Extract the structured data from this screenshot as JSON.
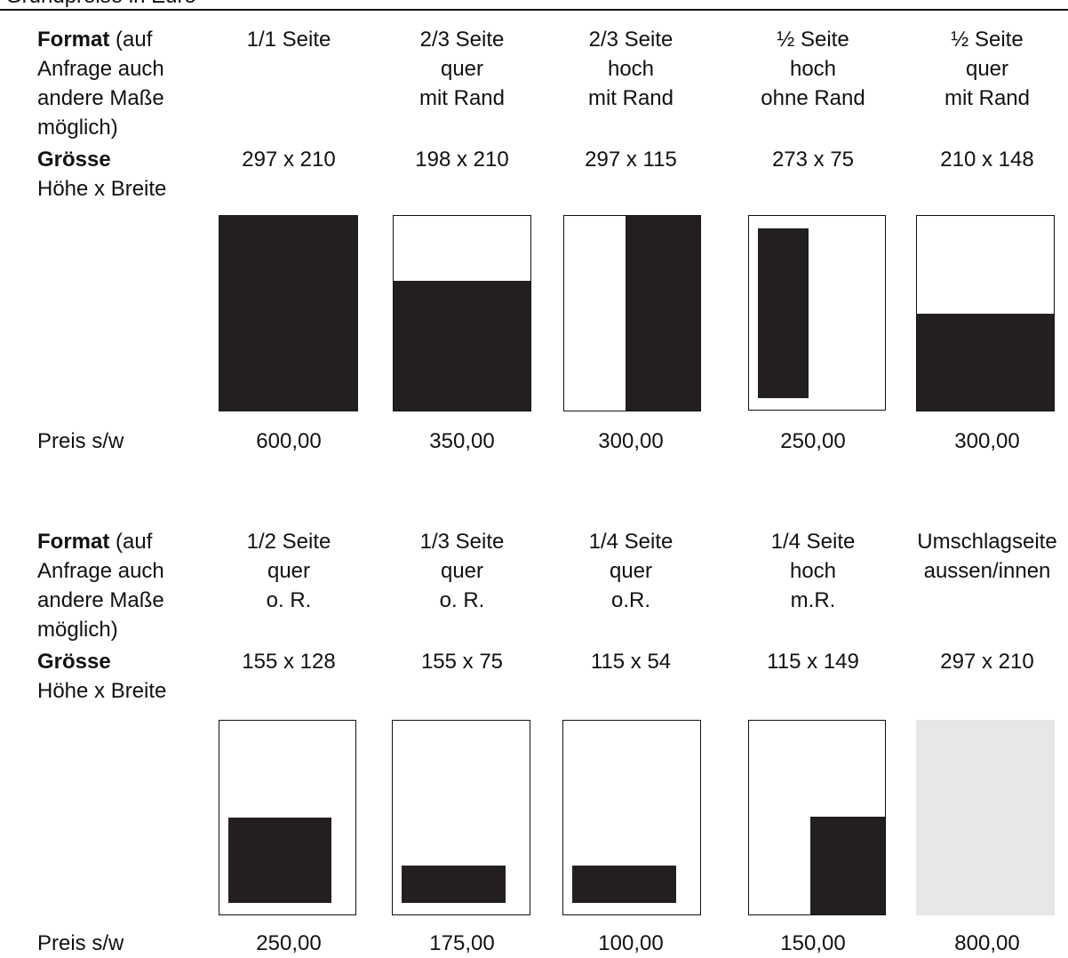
{
  "header": {
    "text": "Grundpreise in Euro"
  },
  "sections": [
    {
      "format_label": "Format",
      "format_note": " (auf\nAnfrage auch\nandere Maße\nmöglich)",
      "size_label": "Grösse",
      "size_note": "Höhe x Breite",
      "price_label": "Preis s/w",
      "columns": [
        {
          "format": "1/1 Seite",
          "size": "297 x 210",
          "price": "600,00"
        },
        {
          "format": "2/3 Seite\nquer\nmit Rand",
          "size": "198 x 210",
          "price": "350,00"
        },
        {
          "format": "2/3 Seite\nhoch\nmit Rand",
          "size": "297 x 115",
          "price": "300,00"
        },
        {
          "format": "½ Seite\nhoch\nohne Rand",
          "size": "273 x 75",
          "price": "250,00"
        },
        {
          "format": "½ Seite\nquer\nmit Rand",
          "size": "210 x 148",
          "price": "300,00"
        }
      ]
    },
    {
      "format_label": "Format",
      "format_note": " (auf\nAnfrage auch\nandere Maße\nmöglich)",
      "size_label": "Grösse",
      "size_note": "Höhe x Breite",
      "price_label": "Preis s/w",
      "columns": [
        {
          "format": "1/2 Seite\nquer\no. R.",
          "size": "155 x 128",
          "price": "250,00"
        },
        {
          "format": "1/3 Seite\nquer\no. R.",
          "size": "155 x 75",
          "price": "175,00"
        },
        {
          "format": "1/4 Seite\nquer\no.R.",
          "size": "115 x 54",
          "price": "100,00"
        },
        {
          "format": "1/4 Seite\nhoch\nm.R.",
          "size": "115 x 149",
          "price": "150,00"
        },
        {
          "format": "Umschlagseite\naussen/innen",
          "size": "297 x 210",
          "price": "800,00"
        }
      ]
    }
  ],
  "colors": {
    "ink": "#231f20",
    "cover_fill": "#e6e7e8",
    "border": "#111111"
  }
}
